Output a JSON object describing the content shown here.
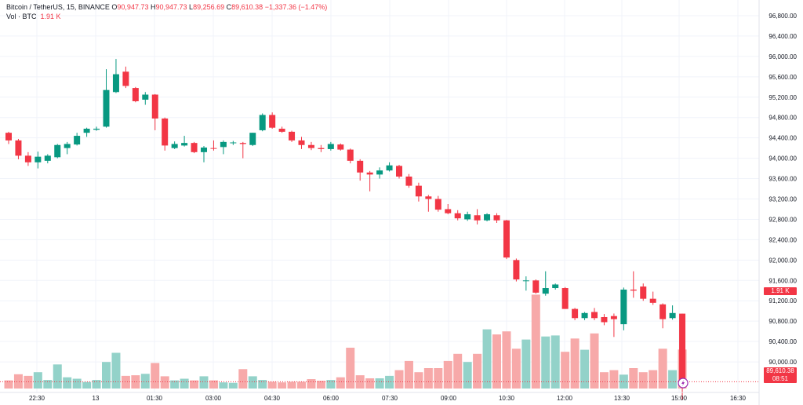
{
  "legend": {
    "symbol": "Bitcoin / TetherUS, 15, BINANCE",
    "o_label": "O",
    "o_value": "90,947.73",
    "h_label": "H",
    "h_value": "90,947.73",
    "l_label": "L",
    "l_value": "89,256.69",
    "c_label": "C",
    "c_value": "89,610.38",
    "change": "−1,337.36 (−1.47%)",
    "vol_label": "Vol · BTC",
    "vol_value": "1.91 K"
  },
  "price_label": {
    "price": "89,610.38",
    "countdown": "08:51"
  },
  "volume_label": "1.91 K",
  "colors": {
    "up": "#089981",
    "down": "#f23645",
    "up_vol": "#93d2c9",
    "down_vol": "#f7a9a9",
    "grid": "#f0f3fa",
    "axis_text": "#131722"
  },
  "chart_data": {
    "type": "candlestick",
    "x_ticks": [
      "22:30",
      "13",
      "01:30",
      "03:00",
      "04:30",
      "06:00",
      "07:30",
      "09:00",
      "10:30",
      "12:00",
      "13:30",
      "15:00",
      "16:30"
    ],
    "y_ticks": [
      "96,800.00",
      "96,400.00",
      "96,000.00",
      "95,600.00",
      "95,200.00",
      "94,800.00",
      "94,400.00",
      "94,000.00",
      "93,600.00",
      "93,200.00",
      "92,800.00",
      "92,400.00",
      "92,000.00",
      "91,600.00",
      "91,200.00",
      "90,800.00",
      "90,400.00",
      "90,000.00"
    ],
    "ylim": [
      89400,
      97000
    ],
    "candles": [
      {
        "o": 94500,
        "h": 94520,
        "l": 94280,
        "c": 94350
      },
      {
        "o": 94350,
        "h": 94380,
        "l": 93980,
        "c": 94050
      },
      {
        "o": 94050,
        "h": 94120,
        "l": 93850,
        "c": 93920
      },
      {
        "o": 93920,
        "h": 94130,
        "l": 93800,
        "c": 94030
      },
      {
        "o": 93950,
        "h": 94080,
        "l": 93900,
        "c": 94050
      },
      {
        "o": 94020,
        "h": 94280,
        "l": 94000,
        "c": 94260
      },
      {
        "o": 94200,
        "h": 94320,
        "l": 94080,
        "c": 94280
      },
      {
        "o": 94270,
        "h": 94500,
        "l": 94250,
        "c": 94440
      },
      {
        "o": 94500,
        "h": 94600,
        "l": 94420,
        "c": 94580
      },
      {
        "o": 94560,
        "h": 94620,
        "l": 94540,
        "c": 94580
      },
      {
        "o": 94620,
        "h": 95750,
        "l": 94600,
        "c": 95340
      },
      {
        "o": 95300,
        "h": 95950,
        "l": 95280,
        "c": 95650
      },
      {
        "o": 95700,
        "h": 95800,
        "l": 95380,
        "c": 95420
      },
      {
        "o": 95380,
        "h": 95400,
        "l": 95100,
        "c": 95120
      },
      {
        "o": 95150,
        "h": 95300,
        "l": 95050,
        "c": 95250
      },
      {
        "o": 95250,
        "h": 95260,
        "l": 94550,
        "c": 94780
      },
      {
        "o": 94780,
        "h": 94800,
        "l": 94150,
        "c": 94250
      },
      {
        "o": 94200,
        "h": 94330,
        "l": 94180,
        "c": 94280
      },
      {
        "o": 94250,
        "h": 94440,
        "l": 94230,
        "c": 94300
      },
      {
        "o": 94300,
        "h": 94320,
        "l": 94100,
        "c": 94120
      },
      {
        "o": 94120,
        "h": 94240,
        "l": 93920,
        "c": 94210
      },
      {
        "o": 94200,
        "h": 94350,
        "l": 94150,
        "c": 94190
      },
      {
        "o": 94220,
        "h": 94350,
        "l": 94080,
        "c": 94320
      },
      {
        "o": 94300,
        "h": 94340,
        "l": 94260,
        "c": 94310
      },
      {
        "o": 94300,
        "h": 94320,
        "l": 94000,
        "c": 94280
      },
      {
        "o": 94260,
        "h": 94500,
        "l": 94240,
        "c": 94500
      },
      {
        "o": 94550,
        "h": 94880,
        "l": 94530,
        "c": 94850
      },
      {
        "o": 94850,
        "h": 94900,
        "l": 94580,
        "c": 94600
      },
      {
        "o": 94580,
        "h": 94620,
        "l": 94500,
        "c": 94520
      },
      {
        "o": 94520,
        "h": 94540,
        "l": 94320,
        "c": 94350
      },
      {
        "o": 94350,
        "h": 94420,
        "l": 94180,
        "c": 94260
      },
      {
        "o": 94260,
        "h": 94320,
        "l": 94160,
        "c": 94200
      },
      {
        "o": 94200,
        "h": 94260,
        "l": 94120,
        "c": 94180
      },
      {
        "o": 94180,
        "h": 94320,
        "l": 94150,
        "c": 94280
      },
      {
        "o": 94270,
        "h": 94290,
        "l": 94150,
        "c": 94170
      },
      {
        "o": 94170,
        "h": 94190,
        "l": 93900,
        "c": 93950
      },
      {
        "o": 93950,
        "h": 93980,
        "l": 93560,
        "c": 93720
      },
      {
        "o": 93720,
        "h": 93750,
        "l": 93350,
        "c": 93680
      },
      {
        "o": 93680,
        "h": 93820,
        "l": 93600,
        "c": 93760
      },
      {
        "o": 93760,
        "h": 93920,
        "l": 93740,
        "c": 93860
      },
      {
        "o": 93850,
        "h": 93870,
        "l": 93600,
        "c": 93640
      },
      {
        "o": 93640,
        "h": 93690,
        "l": 93420,
        "c": 93460
      },
      {
        "o": 93460,
        "h": 93520,
        "l": 93150,
        "c": 93250
      },
      {
        "o": 93250,
        "h": 93280,
        "l": 92950,
        "c": 93200
      },
      {
        "o": 93200,
        "h": 93260,
        "l": 92950,
        "c": 92990
      },
      {
        "o": 93000,
        "h": 93100,
        "l": 92900,
        "c": 92920
      },
      {
        "o": 92920,
        "h": 92980,
        "l": 92780,
        "c": 92820
      },
      {
        "o": 92800,
        "h": 92950,
        "l": 92770,
        "c": 92900
      },
      {
        "o": 92880,
        "h": 93000,
        "l": 92700,
        "c": 92780
      },
      {
        "o": 92780,
        "h": 92920,
        "l": 92760,
        "c": 92900
      },
      {
        "o": 92880,
        "h": 92920,
        "l": 92730,
        "c": 92780
      },
      {
        "o": 92780,
        "h": 92790,
        "l": 92020,
        "c": 92050
      },
      {
        "o": 92000,
        "h": 92030,
        "l": 91580,
        "c": 91620
      },
      {
        "o": 91600,
        "h": 91680,
        "l": 91400,
        "c": 91600
      },
      {
        "o": 91600,
        "h": 91620,
        "l": 91340,
        "c": 91360
      },
      {
        "o": 91340,
        "h": 91780,
        "l": 91300,
        "c": 91450
      },
      {
        "o": 91450,
        "h": 91540,
        "l": 91420,
        "c": 91520
      },
      {
        "o": 91450,
        "h": 91470,
        "l": 91040,
        "c": 91040
      },
      {
        "o": 91040,
        "h": 91060,
        "l": 90820,
        "c": 90860
      },
      {
        "o": 90860,
        "h": 90980,
        "l": 90820,
        "c": 90960
      },
      {
        "o": 90980,
        "h": 91060,
        "l": 90820,
        "c": 90860
      },
      {
        "o": 90880,
        "h": 90940,
        "l": 90720,
        "c": 90780
      },
      {
        "o": 90900,
        "h": 90950,
        "l": 90490,
        "c": 90840
      },
      {
        "o": 90740,
        "h": 91460,
        "l": 90620,
        "c": 91420
      },
      {
        "o": 91420,
        "h": 91780,
        "l": 91260,
        "c": 91400
      },
      {
        "o": 91480,
        "h": 91540,
        "l": 91200,
        "c": 91240
      },
      {
        "o": 91240,
        "h": 91380,
        "l": 91120,
        "c": 91160
      },
      {
        "o": 91130,
        "h": 91150,
        "l": 90660,
        "c": 90840
      },
      {
        "o": 90860,
        "h": 91110,
        "l": 90830,
        "c": 90960
      },
      {
        "o": 90947.73,
        "h": 90947.73,
        "l": 89256.69,
        "c": 89610.38
      }
    ],
    "volumes": [
      0.4,
      0.7,
      0.62,
      0.8,
      0.42,
      1.18,
      0.55,
      0.48,
      0.32,
      0.42,
      1.3,
      1.75,
      0.62,
      0.65,
      0.72,
      1.25,
      0.6,
      0.4,
      0.48,
      0.4,
      0.6,
      0.4,
      0.3,
      0.28,
      0.95,
      0.6,
      0.42,
      0.33,
      0.3,
      0.33,
      0.33,
      0.46,
      0.38,
      0.42,
      0.55,
      2.0,
      0.65,
      0.5,
      0.5,
      0.62,
      0.9,
      1.35,
      0.8,
      1.0,
      1.0,
      1.35,
      1.7,
      1.3,
      1.7,
      2.9,
      2.65,
      2.8,
      1.95,
      2.4,
      4.6,
      2.55,
      2.6,
      1.8,
      2.45,
      1.9,
      2.7,
      0.8,
      0.9,
      0.68,
      1.0,
      0.8,
      0.9,
      1.95,
      0.9,
      1.91
    ]
  }
}
